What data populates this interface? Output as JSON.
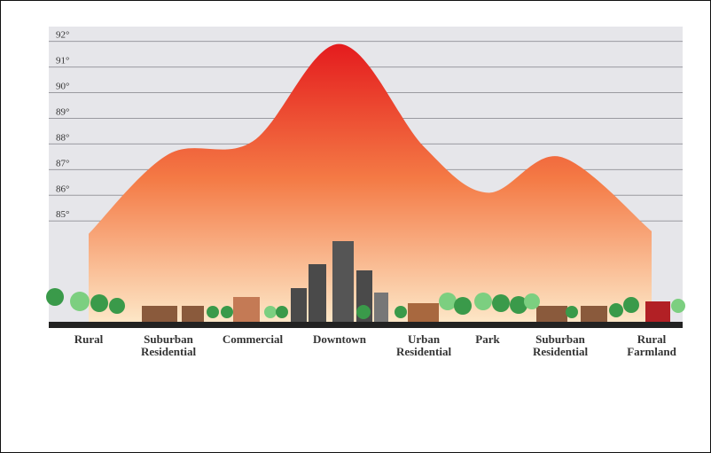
{
  "chart_data": {
    "type": "area",
    "categories": [
      "Rural",
      "Suburban Residential",
      "Commercial",
      "Downtown",
      "Urban Residential",
      "Park",
      "Suburban Residential",
      "Rural Farmland"
    ],
    "values": [
      84.5,
      87.6,
      88.1,
      91.9,
      87.9,
      86.1,
      87.5,
      84.6
    ],
    "ylim": [
      81,
      92.3
    ],
    "yticks": [
      {
        "value": 85,
        "label": "85°"
      },
      {
        "value": 86,
        "label": "86°"
      },
      {
        "value": 87,
        "label": "87°"
      },
      {
        "value": 88,
        "label": "88°"
      },
      {
        "value": 89,
        "label": "89°"
      },
      {
        "value": 90,
        "label": "90°"
      },
      {
        "value": 91,
        "label": "91°"
      },
      {
        "value": 92,
        "label": "92°"
      }
    ],
    "grid": true,
    "colors": [
      "#e3141b",
      "#f47a45",
      "#fde8c8"
    ]
  }
}
